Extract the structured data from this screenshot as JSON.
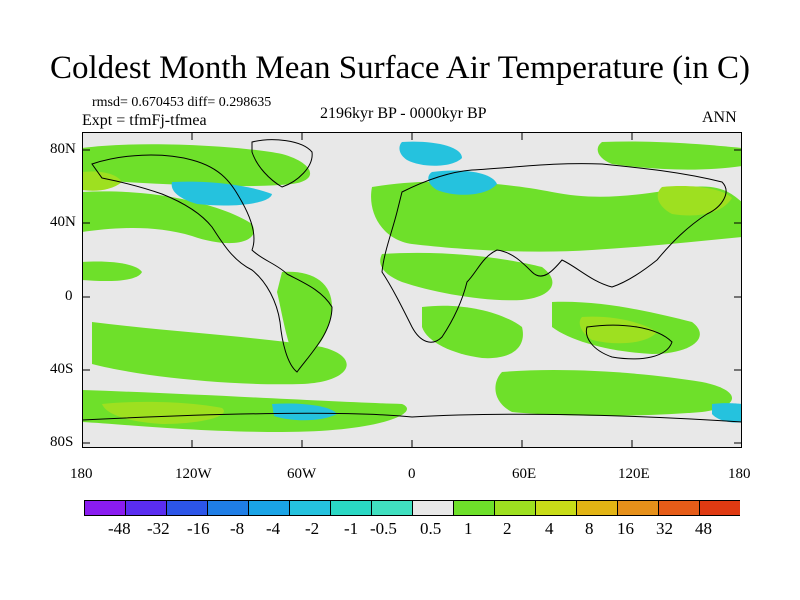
{
  "title": "Coldest Month Mean Surface Air Temperature (in C)",
  "stats": "rmsd= 0.670453 diff= 0.298635",
  "expt": "Expt = tfmFj-tfmea",
  "period": "2196kyr BP - 0000kyr BP",
  "season": "ANN",
  "lat_labels": [
    "80N",
    "40N",
    "0",
    "40S",
    "80S"
  ],
  "lon_labels": [
    "180",
    "120W",
    "60W",
    "0",
    "60E",
    "120E",
    "180"
  ],
  "colorbar": {
    "labels": [
      "-48",
      "-32",
      "-16",
      "-8",
      "-4",
      "-2",
      "-1",
      "-0.5",
      "0.5",
      "1",
      "2",
      "4",
      "8",
      "16",
      "32",
      "48"
    ],
    "colors": [
      "#8a1cf0",
      "#5a2df0",
      "#2c55e8",
      "#1f7ee6",
      "#1aa4e6",
      "#25c2de",
      "#2ad8c4",
      "#40e0c0",
      "#e8e8e8",
      "#6ee02a",
      "#9ee020",
      "#c8dc18",
      "#e2b414",
      "#e6901a",
      "#e65c18",
      "#e03a12"
    ]
  }
}
